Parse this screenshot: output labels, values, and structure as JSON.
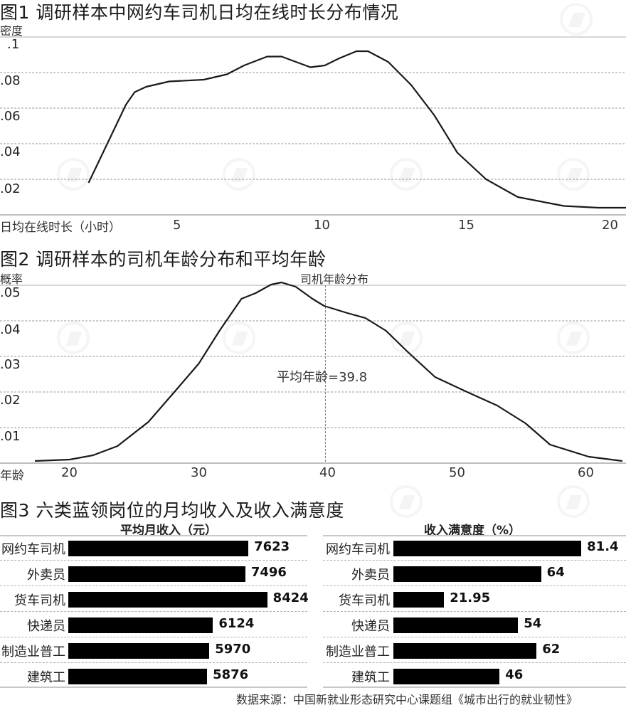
{
  "fig1": {
    "title": "图1 调研样本中网约车司机日均在线时长分布情况",
    "ylabel": "密度",
    "xlabel": "日均在线时长（小时）",
    "yticks": [
      ".1",
      ".08",
      ".06",
      ".04",
      ".02"
    ],
    "xticks": [
      "5",
      "10",
      "15",
      "20"
    ]
  },
  "fig2": {
    "title": "图2 调研样本的司机年龄分布和平均年龄",
    "ylabel": "概率",
    "xlabel": "年龄",
    "legend": "司机年龄分布",
    "annotation": "平均年龄=39.8",
    "yticks": [
      ".05",
      ".04",
      ".03",
      ".02",
      ".01"
    ],
    "xticks": [
      "20",
      "30",
      "40",
      "50",
      "60"
    ]
  },
  "fig3": {
    "title": "图3 六类蓝领岗位的月均收入及收入满意度",
    "left_header": "平均月收入（元）",
    "right_header": "收入满意度（%）"
  },
  "source": "数据来源：中国新就业形态研究中心课题组《城市出行的就业韧性》",
  "chart_data": [
    {
      "type": "line",
      "title": "图1 调研样本中网约车司机日均在线时长分布情况",
      "xlabel": "日均在线时长（小时）",
      "ylabel": "密度",
      "xlim": [
        1.9,
        20.3
      ],
      "ylim": [
        0,
        0.1
      ],
      "grid": true,
      "x": [
        1.9,
        3.2,
        3.5,
        3.9,
        4.7,
        5.9,
        6.7,
        7.3,
        8.1,
        8.6,
        9.6,
        10.1,
        10.6,
        11.2,
        11.6,
        12.3,
        13.1,
        13.9,
        14.7,
        15.7,
        16.8,
        18.4,
        19.6,
        20.8
      ],
      "x_note": "hours (approximate)",
      "y": [
        0.018,
        0.062,
        0.069,
        0.072,
        0.075,
        0.076,
        0.079,
        0.084,
        0.089,
        0.089,
        0.083,
        0.084,
        0.088,
        0.092,
        0.092,
        0.086,
        0.073,
        0.056,
        0.035,
        0.02,
        0.01,
        0.005,
        0.004,
        0.004
      ]
    },
    {
      "type": "line",
      "title": "图2 调研样本的司机年龄分布和平均年龄",
      "xlabel": "年龄",
      "ylabel": "概率",
      "legend": [
        "司机年龄分布"
      ],
      "xlim": [
        15,
        63
      ],
      "ylim": [
        0,
        0.05
      ],
      "grid": true,
      "mean_line": {
        "x": 39.8,
        "label": "平均年龄=39.8"
      },
      "x": [
        17.3,
        20.0,
        21.8,
        23.7,
        26.1,
        28.3,
        30.0,
        31.6,
        33.3,
        34.4,
        35.6,
        36.4,
        37.5,
        38.8,
        39.7,
        41.5,
        42.9,
        44.5,
        46.2,
        48.3,
        50.9,
        53.1,
        55.3,
        57.2,
        60.2,
        62.8
      ],
      "y": [
        0.0006,
        0.001,
        0.0022,
        0.0048,
        0.0116,
        0.0208,
        0.028,
        0.0372,
        0.0462,
        0.0478,
        0.0502,
        0.0508,
        0.0496,
        0.0462,
        0.0442,
        0.0422,
        0.0408,
        0.0372,
        0.0312,
        0.0242,
        0.0198,
        0.0162,
        0.0112,
        0.0052,
        0.0018,
        0.0006
      ]
    },
    {
      "type": "bar",
      "orientation": "horizontal",
      "title": "平均月收入（元）",
      "categories": [
        "网约车司机",
        "外卖员",
        "货车司机",
        "快递员",
        "制造业普工",
        "建筑工"
      ],
      "values": [
        7623,
        7496,
        8424,
        6124,
        5970,
        5876
      ]
    },
    {
      "type": "bar",
      "orientation": "horizontal",
      "title": "收入满意度（%）",
      "categories": [
        "网约车司机",
        "外卖员",
        "货车司机",
        "快递员",
        "制造业普工",
        "建筑工"
      ],
      "values": [
        81.4,
        64,
        21.95,
        54,
        62,
        46
      ]
    }
  ]
}
